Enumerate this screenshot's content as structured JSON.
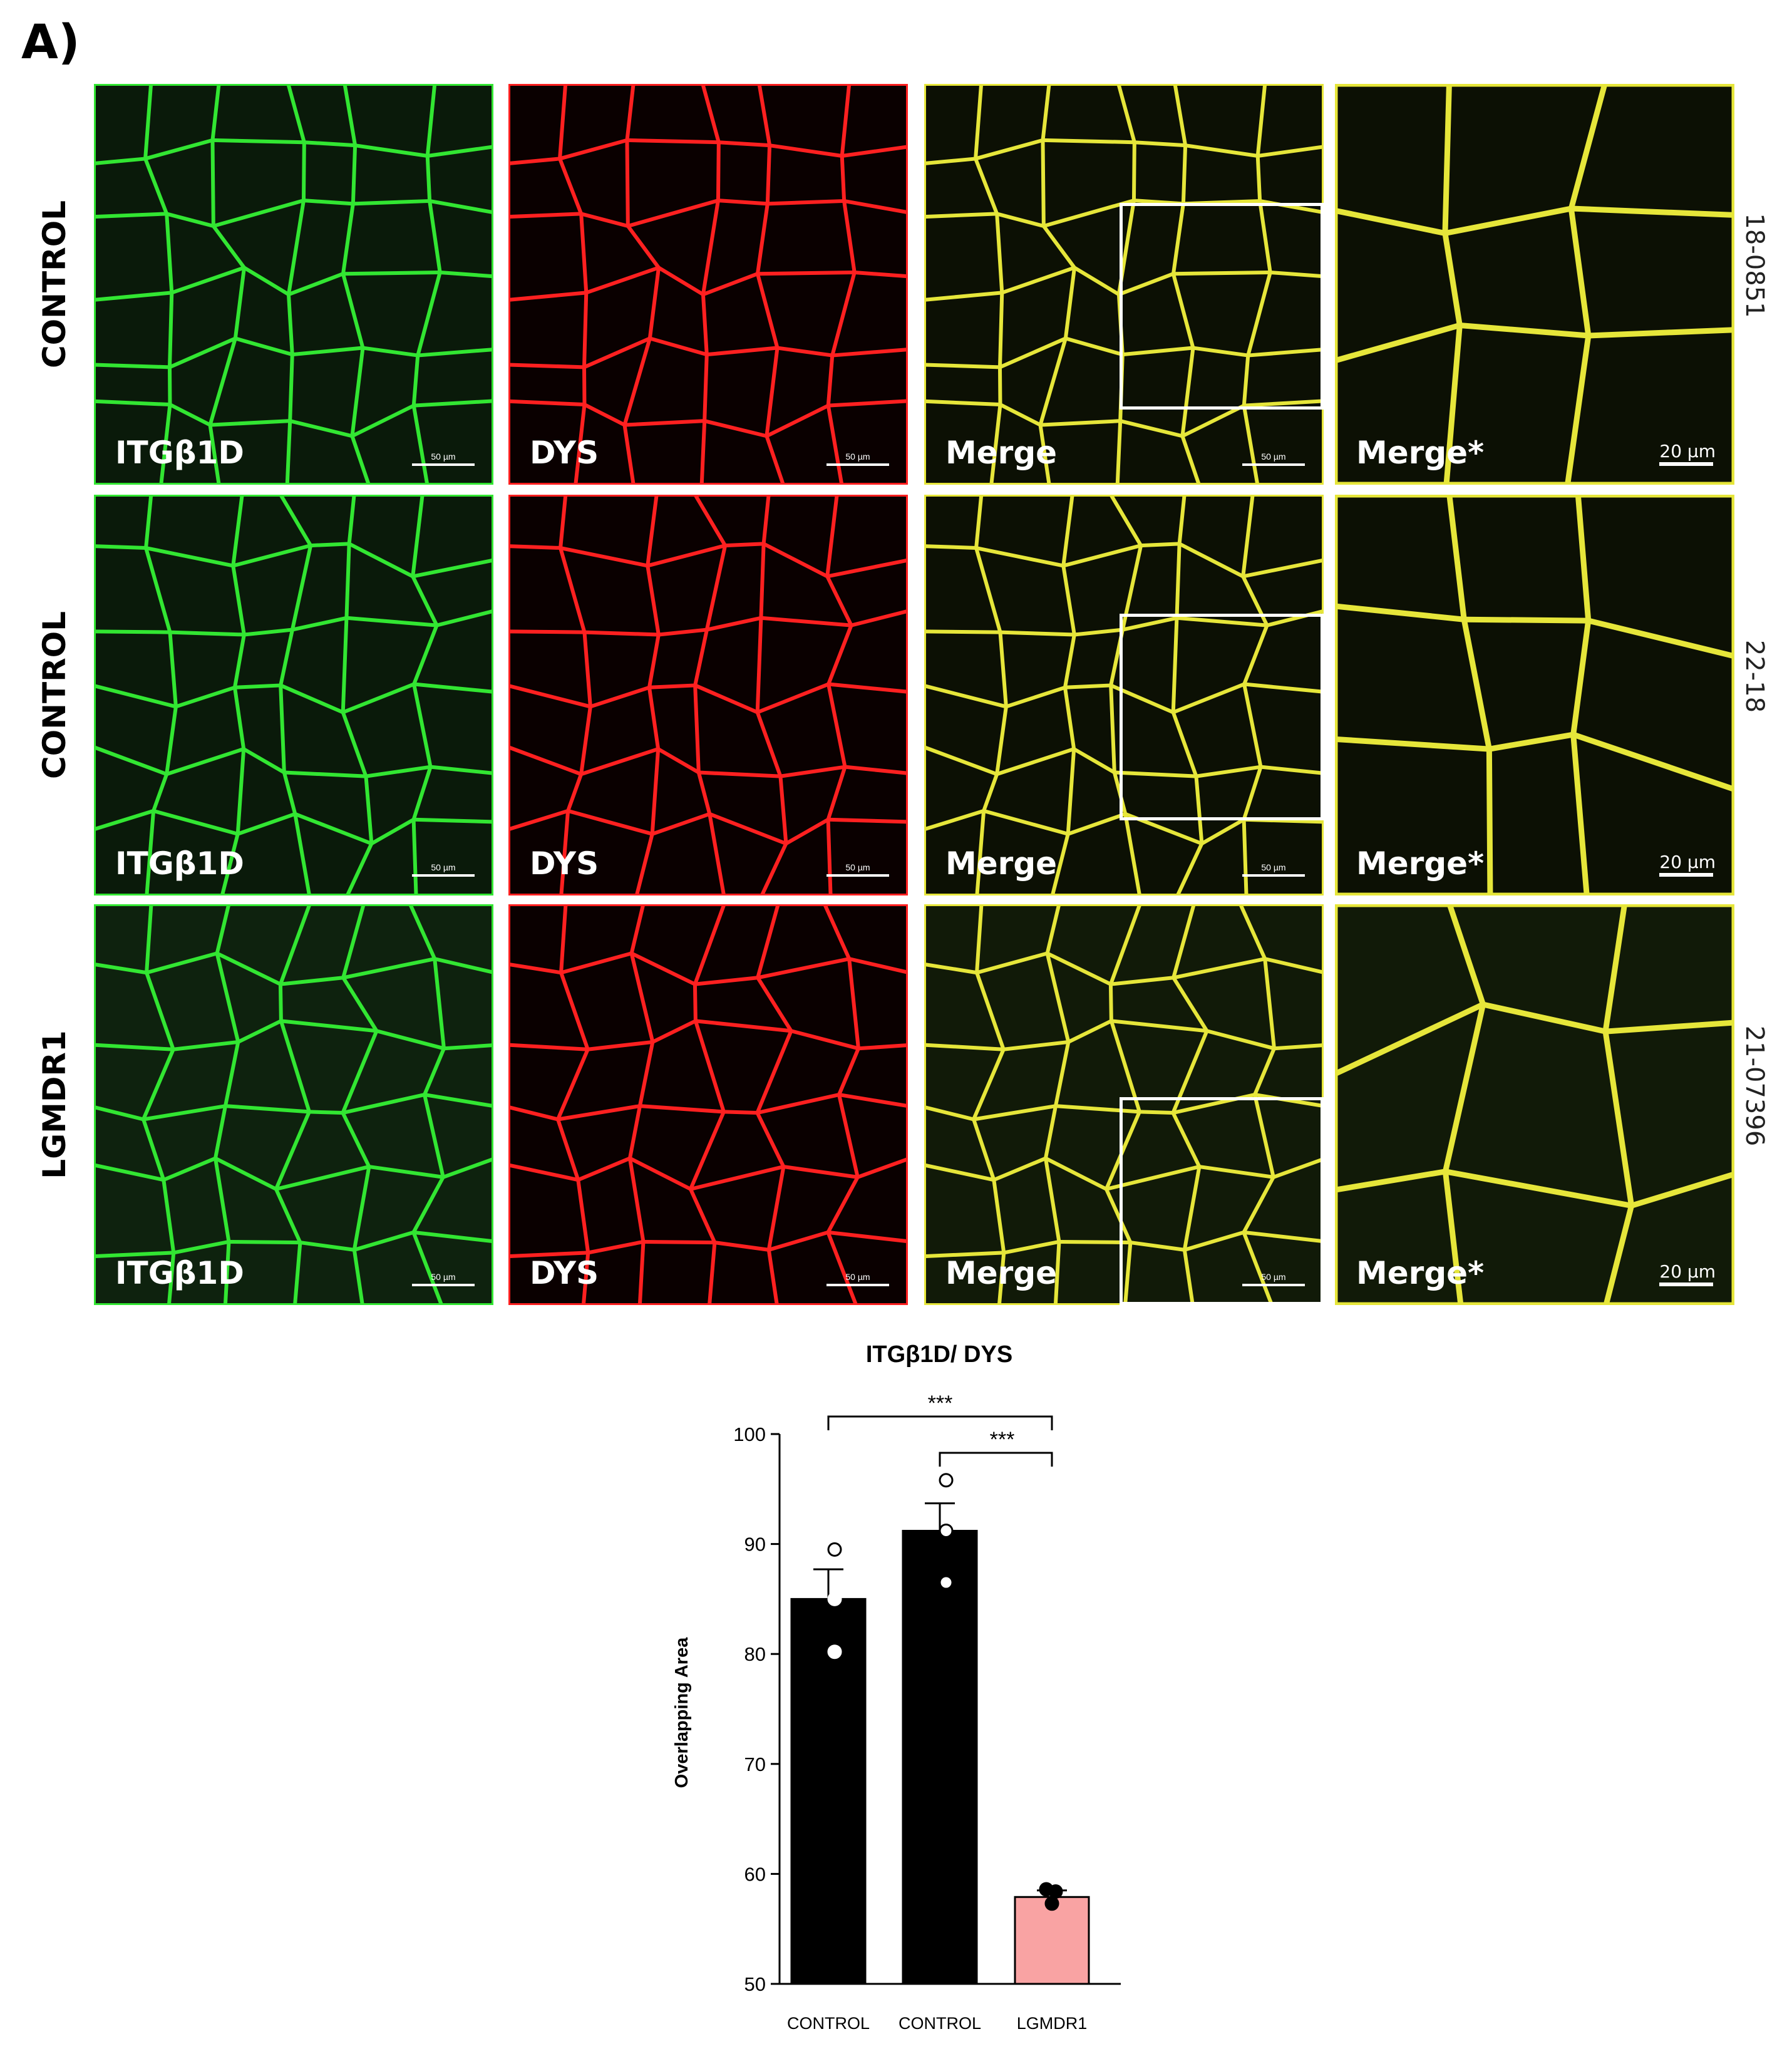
{
  "panel_letter": "A)",
  "channel_labels": {
    "integrin": "ITGβ1D",
    "dystrophin": "DYS",
    "merge": "Merge",
    "merge_zoom": "Merge*"
  },
  "scale_bars": {
    "overview": "50 µm",
    "zoom": "20 µm"
  },
  "rows": [
    {
      "condition": "CONTROL",
      "sample_id": "18-0851"
    },
    {
      "condition": "CONTROL",
      "sample_id": "22-18"
    },
    {
      "condition": "LGMDR1",
      "sample_id": "21-07396"
    }
  ],
  "colors": {
    "integrin_channel": "#32e632",
    "dystrophin_channel": "#ff2020",
    "merge_channel": "#e6e63a",
    "control_bar": "#000000",
    "lgmdr1_bar": "#f9a3a3"
  },
  "chart_data": {
    "type": "bar",
    "title": "ITGβ1D/ DYS",
    "xlabel": "",
    "ylabel": "Overlapping Area",
    "categories": [
      "CONTROL",
      "CONTROL",
      "LGMDR1"
    ],
    "values": [
      85.0,
      91.2,
      57.9
    ],
    "sem": [
      2.7,
      2.5,
      0.6
    ],
    "points": [
      [
        89.5,
        85.0,
        80.2
      ],
      [
        95.8,
        91.2,
        86.5
      ],
      [
        58.6,
        58.4,
        57.3
      ]
    ],
    "ylim": [
      50,
      100
    ],
    "yticks": [
      50,
      60,
      70,
      80,
      90,
      100
    ],
    "significance": [
      {
        "pair": [
          0,
          2
        ],
        "label": "***"
      },
      {
        "pair": [
          1,
          2
        ],
        "label": "***"
      }
    ],
    "grid": false
  }
}
